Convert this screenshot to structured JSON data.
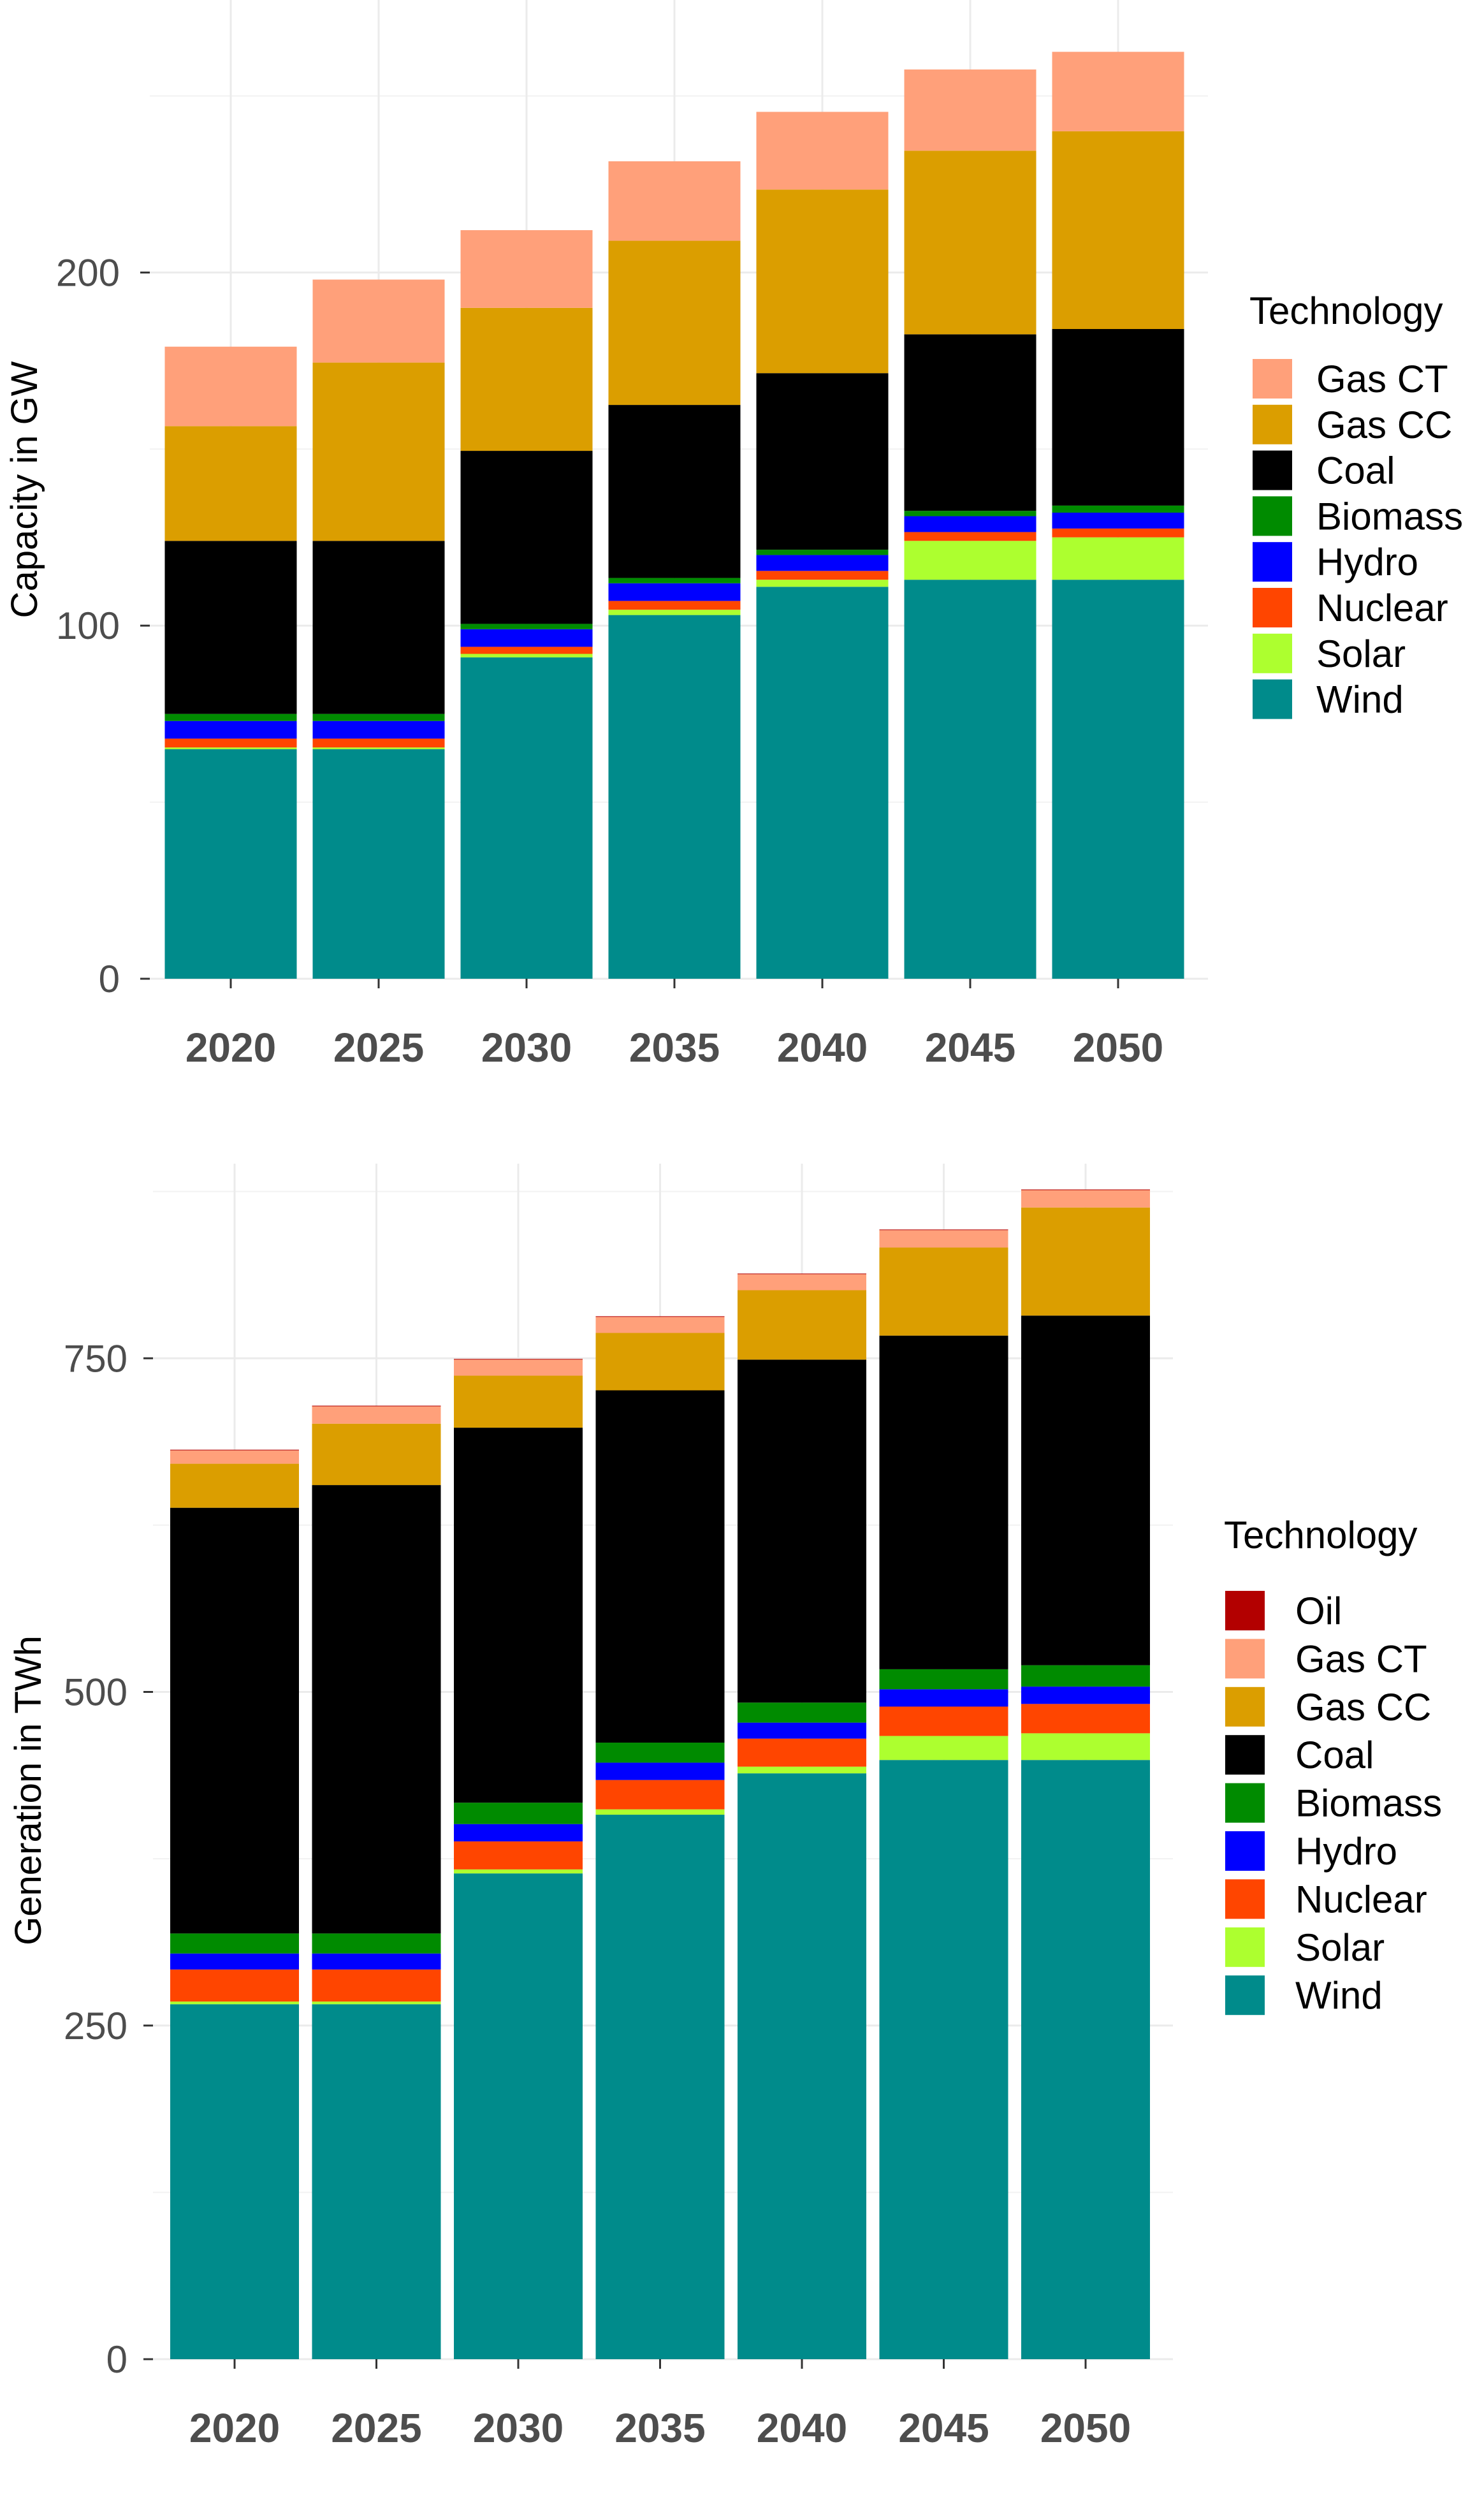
{
  "chart_data": [
    {
      "type": "bar",
      "stacked": true,
      "categories": [
        "2020",
        "2025",
        "2030",
        "2035",
        "2040",
        "2045",
        "2050"
      ],
      "ylabel": "Capacity in GW",
      "xlabel": "",
      "ylim": [
        0,
        265
      ],
      "yticks": [
        0,
        100,
        200
      ],
      "legend_title": "Technology",
      "legend_position": "right",
      "series": [
        {
          "name": "Wind",
          "color": "#008B8B",
          "values": [
            65,
            65,
            91,
            103,
            111,
            113,
            113
          ]
        },
        {
          "name": "Solar",
          "color": "#ADFF2F",
          "values": [
            0.5,
            0.5,
            1,
            1.5,
            2,
            11,
            12
          ]
        },
        {
          "name": "Nuclear",
          "color": "#FF4500",
          "values": [
            2.5,
            2.5,
            2,
            2.5,
            2.5,
            2.5,
            2.5
          ]
        },
        {
          "name": "Hydro",
          "color": "#0000FF",
          "values": [
            5,
            5,
            5,
            5,
            4.5,
            4.5,
            4.5
          ]
        },
        {
          "name": "Biomass",
          "color": "#008B00",
          "values": [
            2,
            2,
            1.5,
            1.5,
            1.5,
            1.5,
            2
          ]
        },
        {
          "name": "Coal",
          "color": "#000000",
          "values": [
            49,
            49,
            49,
            49,
            50,
            50,
            50
          ]
        },
        {
          "name": "Gas CC",
          "color": "#DB9E00",
          "values": [
            32.5,
            50.5,
            40.5,
            46.5,
            52,
            52,
            56
          ]
        },
        {
          "name": "Gas CT",
          "color": "#FFA07A",
          "values": [
            22.5,
            23.5,
            22,
            22.5,
            22,
            23,
            22.5
          ]
        }
      ]
    },
    {
      "type": "bar",
      "stacked": true,
      "categories": [
        "2020",
        "2025",
        "2030",
        "2035",
        "2040",
        "2045",
        "2050"
      ],
      "ylabel": "Generation in TWh",
      "xlabel": "",
      "ylim": [
        0,
        895
      ],
      "yticks": [
        0,
        250,
        500,
        750
      ],
      "legend_title": "Technology",
      "legend_position": "right",
      "series": [
        {
          "name": "Wind",
          "color": "#008B8B",
          "values": [
            266,
            266,
            364,
            408,
            439,
            449,
            449
          ]
        },
        {
          "name": "Solar",
          "color": "#ADFF2F",
          "values": [
            2,
            2,
            3,
            4,
            5,
            18,
            20
          ]
        },
        {
          "name": "Nuclear",
          "color": "#FF4500",
          "values": [
            24,
            24,
            21,
            22,
            21,
            22,
            22
          ]
        },
        {
          "name": "Hydro",
          "color": "#0000FF",
          "values": [
            12,
            12,
            13,
            13,
            12,
            13,
            13
          ]
        },
        {
          "name": "Biomass",
          "color": "#008B00",
          "values": [
            15,
            15,
            16,
            15,
            15,
            15,
            16
          ]
        },
        {
          "name": "Coal",
          "color": "#000000",
          "values": [
            319,
            336,
            281,
            264,
            257,
            250,
            262
          ]
        },
        {
          "name": "Gas CC",
          "color": "#DB9E00",
          "values": [
            33,
            46,
            39,
            43,
            52,
            66,
            81
          ]
        },
        {
          "name": "Gas CT",
          "color": "#FFA07A",
          "values": [
            10,
            13,
            12,
            12,
            12,
            13,
            13
          ]
        },
        {
          "name": "Oil",
          "color": "#B30000",
          "values": [
            0.5,
            0.5,
            0.5,
            0.5,
            0.5,
            0.5,
            0.5
          ]
        }
      ]
    }
  ]
}
